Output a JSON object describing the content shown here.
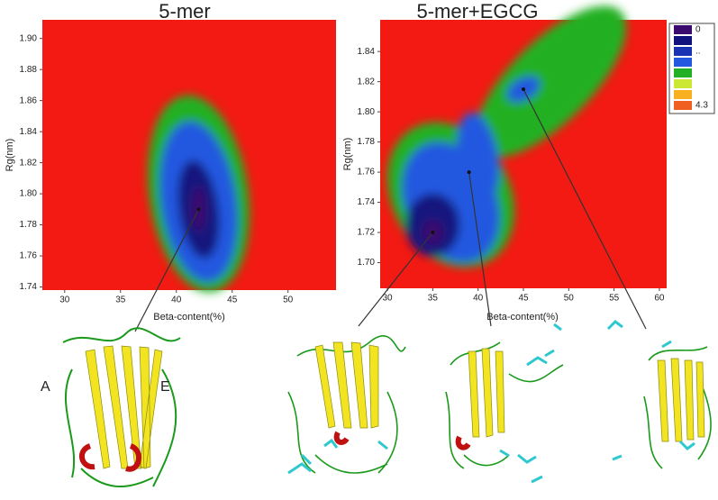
{
  "chart_data": [
    {
      "type": "heatmap",
      "title": "5-mer",
      "xlabel": "Beta-content(%)",
      "ylabel": "Rg(nm)",
      "xlim": [
        28,
        54.3
      ],
      "ylim": [
        1.738,
        1.912
      ],
      "xticks": [
        30,
        35,
        40,
        45,
        50
      ],
      "yticks": [
        {
          "value": 1.74,
          "label": "1.74"
        },
        {
          "value": 1.76,
          "label": "1.76"
        },
        {
          "value": 1.78,
          "label": "1.78"
        },
        {
          "value": 1.8,
          "label": "1.80"
        },
        {
          "value": 1.82,
          "label": "1.82"
        },
        {
          "value": 1.84,
          "label": "1.84"
        },
        {
          "value": 1.86,
          "label": "1.86"
        },
        {
          "value": 1.88,
          "label": "1.88"
        },
        {
          "value": 1.9,
          "label": "1.90"
        }
      ],
      "arrow_points": {
        "x": [
          42
        ],
        "y": [
          1.79
        ]
      }
    },
    {
      "type": "heatmap",
      "title": "5-mer+EGCG",
      "xlabel": "Beta-content(%)",
      "ylabel": "Rg(nm)",
      "xlim": [
        29.2,
        60.8
      ],
      "ylim": [
        1.683,
        1.861
      ],
      "xticks": [
        30,
        35,
        40,
        45,
        50,
        55,
        60
      ],
      "yticks": [
        {
          "value": 1.7,
          "label": "1.70"
        },
        {
          "value": 1.72,
          "label": "1.72"
        },
        {
          "value": 1.74,
          "label": "1.74"
        },
        {
          "value": 1.76,
          "label": "1.76"
        },
        {
          "value": 1.78,
          "label": "1.78"
        },
        {
          "value": 1.8,
          "label": "1.80"
        },
        {
          "value": 1.82,
          "label": "1.82"
        },
        {
          "value": 1.84,
          "label": "1.84"
        }
      ],
      "arrow_points": {
        "x": [
          35,
          39,
          45
        ],
        "y": [
          1.72,
          1.76,
          1.815
        ]
      },
      "colorbar": {
        "colors": [
          "#3a0a6e",
          "#12127e",
          "#1a32b4",
          "#2358e0",
          "#22b024",
          "#cce832",
          "#f8b020",
          "#f06020"
        ],
        "labels": [
          "0",
          null,
          "..",
          null,
          null,
          null,
          null,
          "4.3"
        ]
      }
    }
  ],
  "annotations": [
    "A",
    "E"
  ]
}
